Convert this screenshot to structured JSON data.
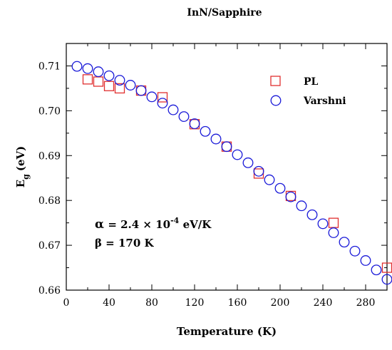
{
  "chart_data": {
    "type": "scatter",
    "title": "InN/Sapphire",
    "xlabel": "Temperature (K)",
    "ylabel_main": "E",
    "ylabel_sub": "g",
    "ylabel_unit": "(eV)",
    "xlim": [
      0,
      300
    ],
    "ylim": [
      0.66,
      0.715
    ],
    "x_ticks": [
      0,
      40,
      80,
      120,
      160,
      200,
      240,
      280
    ],
    "y_ticks": [
      0.66,
      0.67,
      0.68,
      0.69,
      0.7,
      0.71
    ],
    "y_tick_labels": [
      "0.66",
      "0.67",
      "0.68",
      "0.69",
      "0.70",
      "0.71"
    ],
    "grid": false,
    "legend_position": "top-right",
    "series": [
      {
        "name": "PL",
        "marker": "square",
        "color": "#e03030",
        "x": [
          20,
          30,
          40,
          50,
          70,
          90,
          120,
          150,
          180,
          210,
          250,
          300
        ],
        "y": [
          0.707,
          0.7065,
          0.7055,
          0.705,
          0.7045,
          0.703,
          0.697,
          0.692,
          0.686,
          0.681,
          0.675,
          0.665
        ]
      },
      {
        "name": "Varshni",
        "marker": "circle",
        "color": "#1a1ad8",
        "x": [
          10,
          20,
          30,
          40,
          50,
          60,
          70,
          80,
          90,
          100,
          110,
          120,
          130,
          140,
          150,
          160,
          170,
          180,
          190,
          200,
          210,
          220,
          230,
          240,
          250,
          260,
          270,
          280,
          290,
          300
        ],
        "y": [
          0.7099,
          0.7094,
          0.7087,
          0.7078,
          0.7068,
          0.7057,
          0.7045,
          0.7031,
          0.7017,
          0.7002,
          0.6987,
          0.6971,
          0.6954,
          0.6937,
          0.692,
          0.6902,
          0.6884,
          0.6865,
          0.6846,
          0.6827,
          0.6808,
          0.6788,
          0.6768,
          0.6748,
          0.6728,
          0.6707,
          0.6687,
          0.6666,
          0.6645,
          0.6624
        ]
      }
    ],
    "annotation": {
      "alpha_symbol": "α",
      "alpha_text": "= 2.4 × 10",
      "alpha_exp": "-4",
      "alpha_unit": " eV/K",
      "beta_text": "β = 170 K"
    }
  }
}
